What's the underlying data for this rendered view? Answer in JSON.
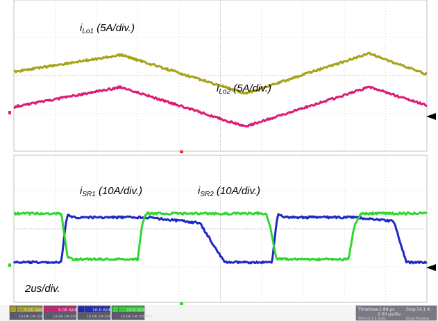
{
  "chart_data": [
    {
      "type": "line",
      "title": "",
      "xlabel": "",
      "ylabel": "",
      "time_scale": "2us/div.",
      "x_divisions": 10,
      "y_divisions": 4,
      "grid": true,
      "series": [
        {
          "name": "iLo1 (5A/div.)",
          "label_main": "i",
          "label_sub": "Lo1",
          "label_tail": " (5A/div.)",
          "color": "#a8a21a",
          "x_div": [
            0,
            2.6,
            5.6,
            8.6,
            10
          ],
          "y_div": [
            0.1,
            0.54,
            -0.47,
            0.58,
            0.03
          ]
        },
        {
          "name": "iLo2 (5A/div.)",
          "label_main": "i",
          "label_sub": "Lo2",
          "label_tail": " (5A/div.)",
          "color": "#dc1b72",
          "x_div": [
            0,
            2.6,
            5.6,
            8.6,
            10
          ],
          "y_div": [
            -0.82,
            -0.3,
            -1.34,
            -0.3,
            -0.78
          ]
        }
      ]
    },
    {
      "type": "line",
      "title": "",
      "xlabel": "",
      "ylabel": "",
      "time_scale": "2us/div.",
      "x_divisions": 10,
      "y_divisions": 4,
      "grid": true,
      "series": [
        {
          "name": "iSR1 (10A/div.)",
          "label_main": "i",
          "label_sub": "SR1",
          "label_tail": " (10A/div.)",
          "color": "#1d28c4",
          "x_div": [
            0,
            1.0,
            1.15,
            1.25,
            1.3,
            1.4,
            1.5,
            2.2,
            2.4,
            3.05,
            3.2,
            4.1,
            4.5,
            5.1,
            5.3,
            6.1,
            6.25,
            6.35,
            6.4,
            6.5,
            6.6,
            7.2,
            7.4,
            8.1,
            8.25,
            9.2,
            9.5,
            10
          ],
          "y_div": [
            -0.88,
            -0.88,
            -0.88,
            0.1,
            0.35,
            0.32,
            0.3,
            0.3,
            0.3,
            0.3,
            0.3,
            0.2,
            0.15,
            -0.88,
            -0.88,
            -0.88,
            -0.88,
            0.1,
            0.4,
            0.32,
            0.3,
            0.3,
            0.3,
            0.3,
            0.3,
            0.2,
            -0.88,
            -0.88
          ]
        },
        {
          "name": "iSR2 (10A/div.)",
          "label_main": "i",
          "label_sub": "SR2",
          "label_tail": " (10A/div.)",
          "color": "#2ed62e",
          "x_div": [
            0,
            1.0,
            1.15,
            1.3,
            1.45,
            1.55,
            2.5,
            3.0,
            3.1,
            3.2,
            3.35,
            3.5,
            4.5,
            5.3,
            6.1,
            6.2,
            6.35,
            6.5,
            7.5,
            8.1,
            8.25,
            8.4,
            10
          ],
          "y_div": [
            0.4,
            0.4,
            0.4,
            -0.75,
            -0.8,
            -0.8,
            -0.8,
            -0.8,
            0.1,
            0.4,
            0.4,
            0.4,
            0.4,
            0.4,
            0.4,
            0.1,
            -0.78,
            -0.8,
            -0.8,
            -0.8,
            0.1,
            0.4,
            0.4
          ]
        }
      ]
    }
  ],
  "annotations": {
    "time_scale": "2us/div."
  },
  "status_chips": [
    {
      "label": "5.00 A/div",
      "sub": "10.0A  1M  200MHz",
      "color": "#a8a21a"
    },
    {
      "label": "5.00 A/div",
      "sub": "10.0A  1M  200MHz",
      "color": "#dc1b72"
    },
    {
      "label": "10.0 A/div",
      "sub": "10.0A  1M  200MHz",
      "color": "#1d28c4"
    },
    {
      "label": "10.0 A/div",
      "sub": "10.0A  1M  200MHz",
      "color": "#2ed62e"
    }
  ],
  "timebase": {
    "timebase_label": "Timebase",
    "timebase_value": "-1.84 µs",
    "rate": "2.00 µs/div",
    "samples": "500 kS   2.5 GS/s",
    "trigger_label": "Stop",
    "trigger_value": "14.1 A",
    "trigger_mode": "Edge   Positive"
  }
}
